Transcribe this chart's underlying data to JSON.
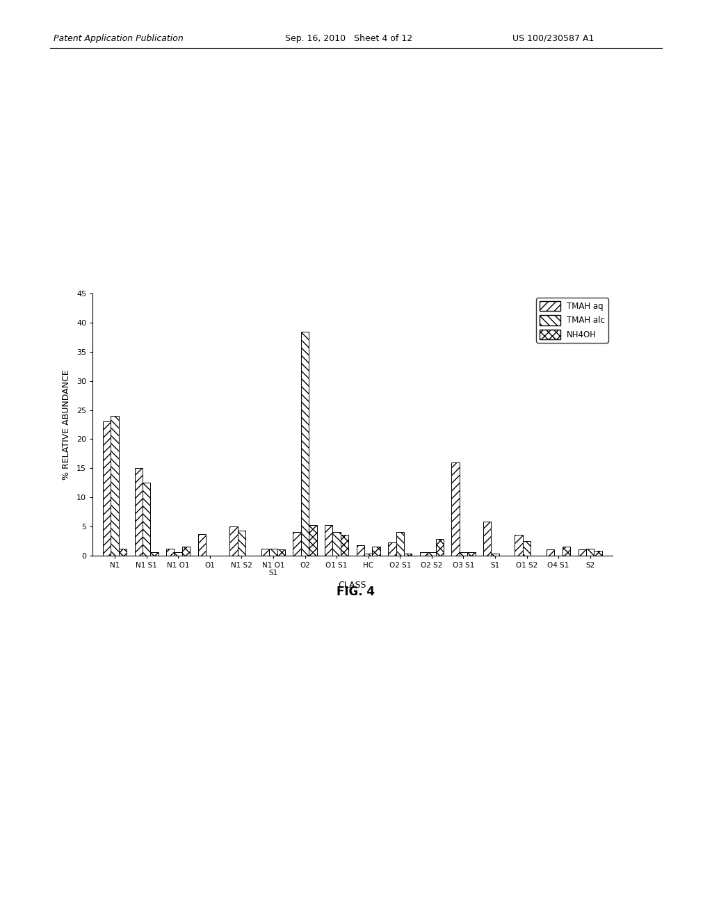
{
  "categories": [
    "N1",
    "N1 S1",
    "N1 O1",
    "O1",
    "N1 S2",
    "N1 O1\nS1",
    "O2",
    "O1 S1",
    "HC",
    "O2 S1",
    "O2 S2",
    "O3 S1",
    "S1",
    "O1 S2",
    "O4 S1",
    "S2"
  ],
  "tmah_aq": [
    23.0,
    15.0,
    1.2,
    3.7,
    5.0,
    1.2,
    4.0,
    5.2,
    1.7,
    2.2,
    0.5,
    16.0,
    5.8,
    3.5,
    1.0,
    1.0
  ],
  "tmah_alc": [
    24.0,
    12.5,
    0.5,
    0.0,
    4.3,
    1.2,
    38.5,
    4.0,
    0.3,
    4.0,
    0.5,
    0.5,
    0.3,
    2.5,
    0.0,
    1.2
  ],
  "nh4oh": [
    1.2,
    0.6,
    1.5,
    0.0,
    0.0,
    1.0,
    5.2,
    3.5,
    1.5,
    0.3,
    2.8,
    0.5,
    0.0,
    0.0,
    1.5,
    0.8
  ],
  "ylabel": "% RELATIVE ABUNDANCE",
  "xlabel": "CLASS",
  "fig_label": "FIG. 4",
  "ylim": [
    0,
    45
  ],
  "yticks": [
    0,
    5,
    10,
    15,
    20,
    25,
    30,
    35,
    40,
    45
  ],
  "legend_labels": [
    "TMAH aq",
    "TMAH alc",
    "NH4OH"
  ],
  "background_color": "#ffffff",
  "bar_width": 0.25,
  "hatch_tmah_aq": "///",
  "hatch_tmah_alc": "\\\\\\",
  "hatch_nh4oh": "XXX",
  "header_left": "Patent Application Publication",
  "header_mid": "Sep. 16, 2010   Sheet 4 of 12",
  "header_right": "US 100/230587 A1"
}
